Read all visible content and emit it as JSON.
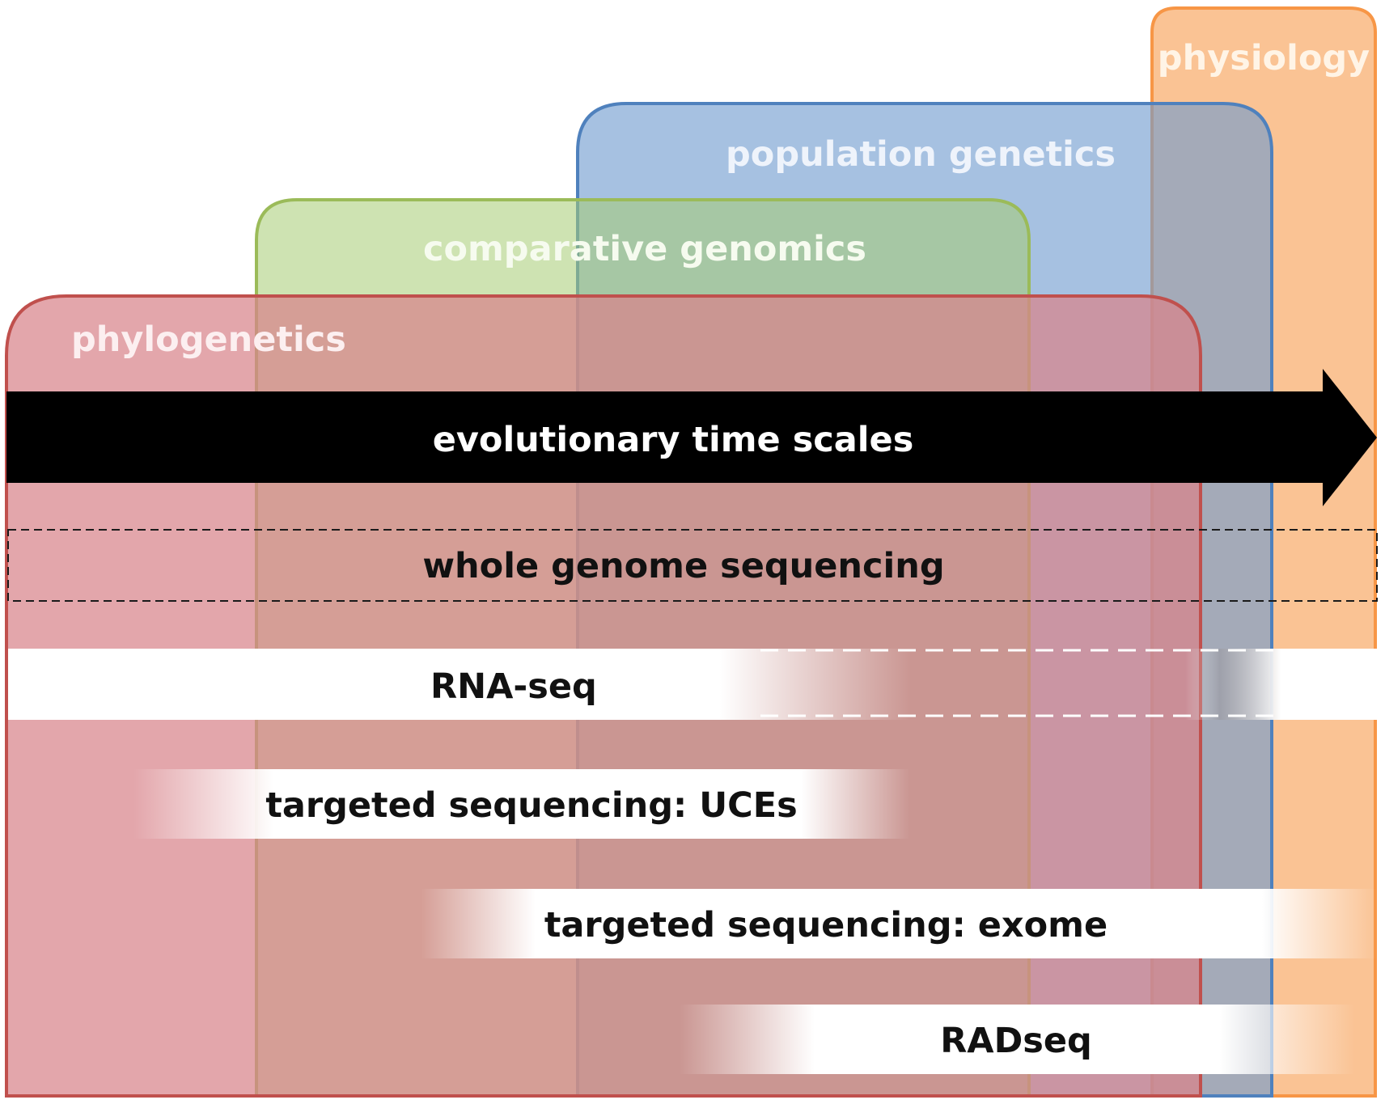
{
  "fields": [
    {
      "id": "physiology",
      "label": "physiology",
      "fill": "#F9B67C",
      "stroke": "#F79646",
      "label_color": "#FFF4E6"
    },
    {
      "id": "population-genetics",
      "label": "population genetics",
      "fill": "#6F9BCE",
      "stroke": "#4F81BD",
      "label_color": "#EEF3FB"
    },
    {
      "id": "comparative-genomics",
      "label": "comparative genomics",
      "fill": "#A5CC73",
      "stroke": "#9BBB59",
      "label_color": "#F6FBEF"
    },
    {
      "id": "phylogenetics",
      "label": "phylogenetics",
      "fill": "#D8848A",
      "stroke": "#C0504D",
      "label_color": "#FCEFF0"
    }
  ],
  "arrow": {
    "label": "evolutionary time scales",
    "color": "#000000",
    "label_color": "#FFFFFF"
  },
  "methods": [
    {
      "id": "whole-genome-sequencing",
      "label": "whole genome sequencing",
      "style": "dashed-box"
    },
    {
      "id": "rna-seq",
      "label": "RNA-seq",
      "style": "band"
    },
    {
      "id": "targeted-uces",
      "label": "targeted sequencing: UCEs",
      "style": "band"
    },
    {
      "id": "targeted-exome",
      "label": "targeted sequencing: exome",
      "style": "band"
    },
    {
      "id": "radseq",
      "label": "RADseq",
      "style": "band"
    }
  ]
}
